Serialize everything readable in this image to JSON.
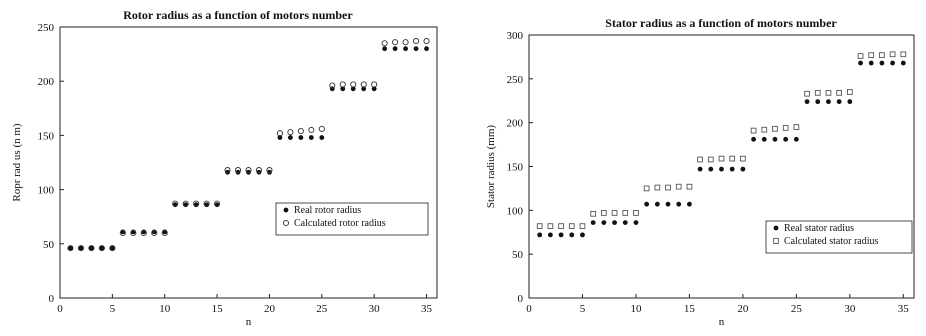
{
  "chart_data": [
    {
      "type": "scatter",
      "title": "Rotor radius as a function of motors number",
      "xlabel": "n",
      "ylabel": "Ro​pr rad us (n m)",
      "xlim": [
        0,
        36
      ],
      "ylim": [
        0,
        250
      ],
      "xticks": [
        "0",
        "5",
        "10",
        "15",
        "20",
        "25",
        "30",
        "35"
      ],
      "yticks": [
        "0",
        "50",
        "100",
        "150",
        "200",
        "250"
      ],
      "grid": false,
      "legend_position": "right",
      "x": [
        1,
        2,
        3,
        4,
        5,
        6,
        7,
        8,
        9,
        10,
        11,
        12,
        13,
        14,
        15,
        16,
        17,
        18,
        19,
        20,
        21,
        22,
        23,
        24,
        25,
        26,
        27,
        28,
        29,
        30,
        31,
        32,
        33,
        34,
        35
      ],
      "series": [
        {
          "name": "Real rotor radius",
          "marker": "filled-dot",
          "values": [
            46,
            46,
            46,
            46,
            46,
            61,
            61,
            61,
            61,
            61,
            86,
            86,
            86,
            86,
            86,
            116,
            116,
            116,
            116,
            116,
            148,
            148,
            148,
            148,
            148,
            193,
            193,
            193,
            193,
            193,
            230,
            230,
            230,
            230,
            230
          ]
        },
        {
          "name": "Calculated rotor radius",
          "marker": "open-circle",
          "values": [
            46,
            46,
            46,
            46,
            46,
            60,
            60,
            60,
            60,
            60,
            87,
            87,
            87,
            87,
            87,
            118,
            118,
            118,
            118,
            118,
            152,
            153,
            154,
            155,
            156,
            196,
            197,
            197,
            197,
            197,
            235,
            236,
            236,
            237,
            237
          ]
        }
      ]
    },
    {
      "type": "scatter",
      "title": "Stator radius as a function of motors number",
      "xlabel": "n",
      "ylabel": "Stator radius (mm)",
      "xlim": [
        0,
        36
      ],
      "ylim": [
        0,
        300
      ],
      "xticks": [
        "0",
        "5",
        "10",
        "15",
        "20",
        "25",
        "30",
        "35"
      ],
      "yticks": [
        "0",
        "50",
        "100",
        "150",
        "200",
        "250",
        "300"
      ],
      "grid": false,
      "legend_position": "bottom-right",
      "x": [
        1,
        2,
        3,
        4,
        5,
        6,
        7,
        8,
        9,
        10,
        11,
        12,
        13,
        14,
        15,
        16,
        17,
        18,
        19,
        20,
        21,
        22,
        23,
        24,
        25,
        26,
        27,
        28,
        29,
        30,
        31,
        32,
        33,
        34,
        35
      ],
      "series": [
        {
          "name": "Real stator radius",
          "marker": "filled-dot",
          "values": [
            72,
            72,
            72,
            72,
            72,
            86,
            86,
            86,
            86,
            86,
            107,
            107,
            107,
            107,
            107,
            147,
            147,
            147,
            147,
            147,
            181,
            181,
            181,
            181,
            181,
            224,
            224,
            224,
            224,
            224,
            268,
            268,
            268,
            268,
            268
          ]
        },
        {
          "name": "Calculated stator radius",
          "marker": "open-square",
          "values": [
            82,
            82,
            82,
            82,
            82,
            96,
            97,
            97,
            97,
            97,
            125,
            126,
            126,
            127,
            127,
            158,
            158,
            159,
            159,
            159,
            191,
            192,
            193,
            194,
            195,
            233,
            234,
            234,
            234,
            235,
            276,
            277,
            277,
            278,
            278
          ]
        }
      ]
    }
  ]
}
